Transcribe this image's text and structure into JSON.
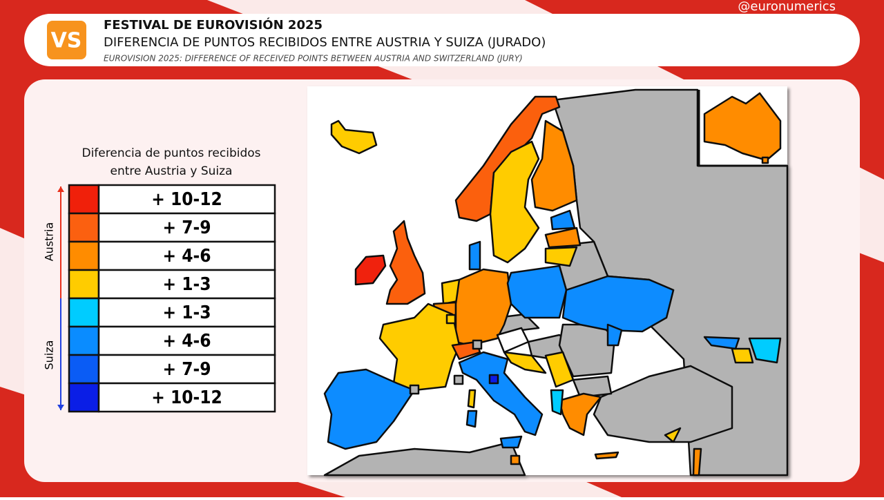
{
  "header": {
    "logo": "VS",
    "handle": "@euronumerics",
    "title": "FESTIVAL DE EUROVISIÓN 2025",
    "subtitle": "DIFERENCIA DE PUNTOS RECIBIDOS ENTRE AUSTRIA Y SUIZA (JURADO)",
    "subtitle_en": "EUROVISION 2025: DIFFERENCE OF RECEIVED POINTS BETWEEN AUSTRIA AND SWITZERLAND (JURY)"
  },
  "legend": {
    "title": "Diferencia de puntos recibidos entre Austria y Suiza",
    "groups": [
      {
        "label": "Austria",
        "color": "#e8301c",
        "items": [
          {
            "label": "+ 10-12",
            "color": "#f0200a"
          },
          {
            "label": "+ 7-9",
            "color": "#fb6010"
          },
          {
            "label": "+ 4-6",
            "color": "#ff8c00"
          },
          {
            "label": "+ 1-3",
            "color": "#ffcc00"
          }
        ]
      },
      {
        "label": "Suiza",
        "color": "#2040e0",
        "items": [
          {
            "label": "+ 1-3",
            "color": "#00ccff"
          },
          {
            "label": "+ 4-6",
            "color": "#0a8cff"
          },
          {
            "label": "+ 7-9",
            "color": "#0a5cf5"
          },
          {
            "label": "+ 10-12",
            "color": "#0a1ee6"
          }
        ]
      }
    ]
  }
}
